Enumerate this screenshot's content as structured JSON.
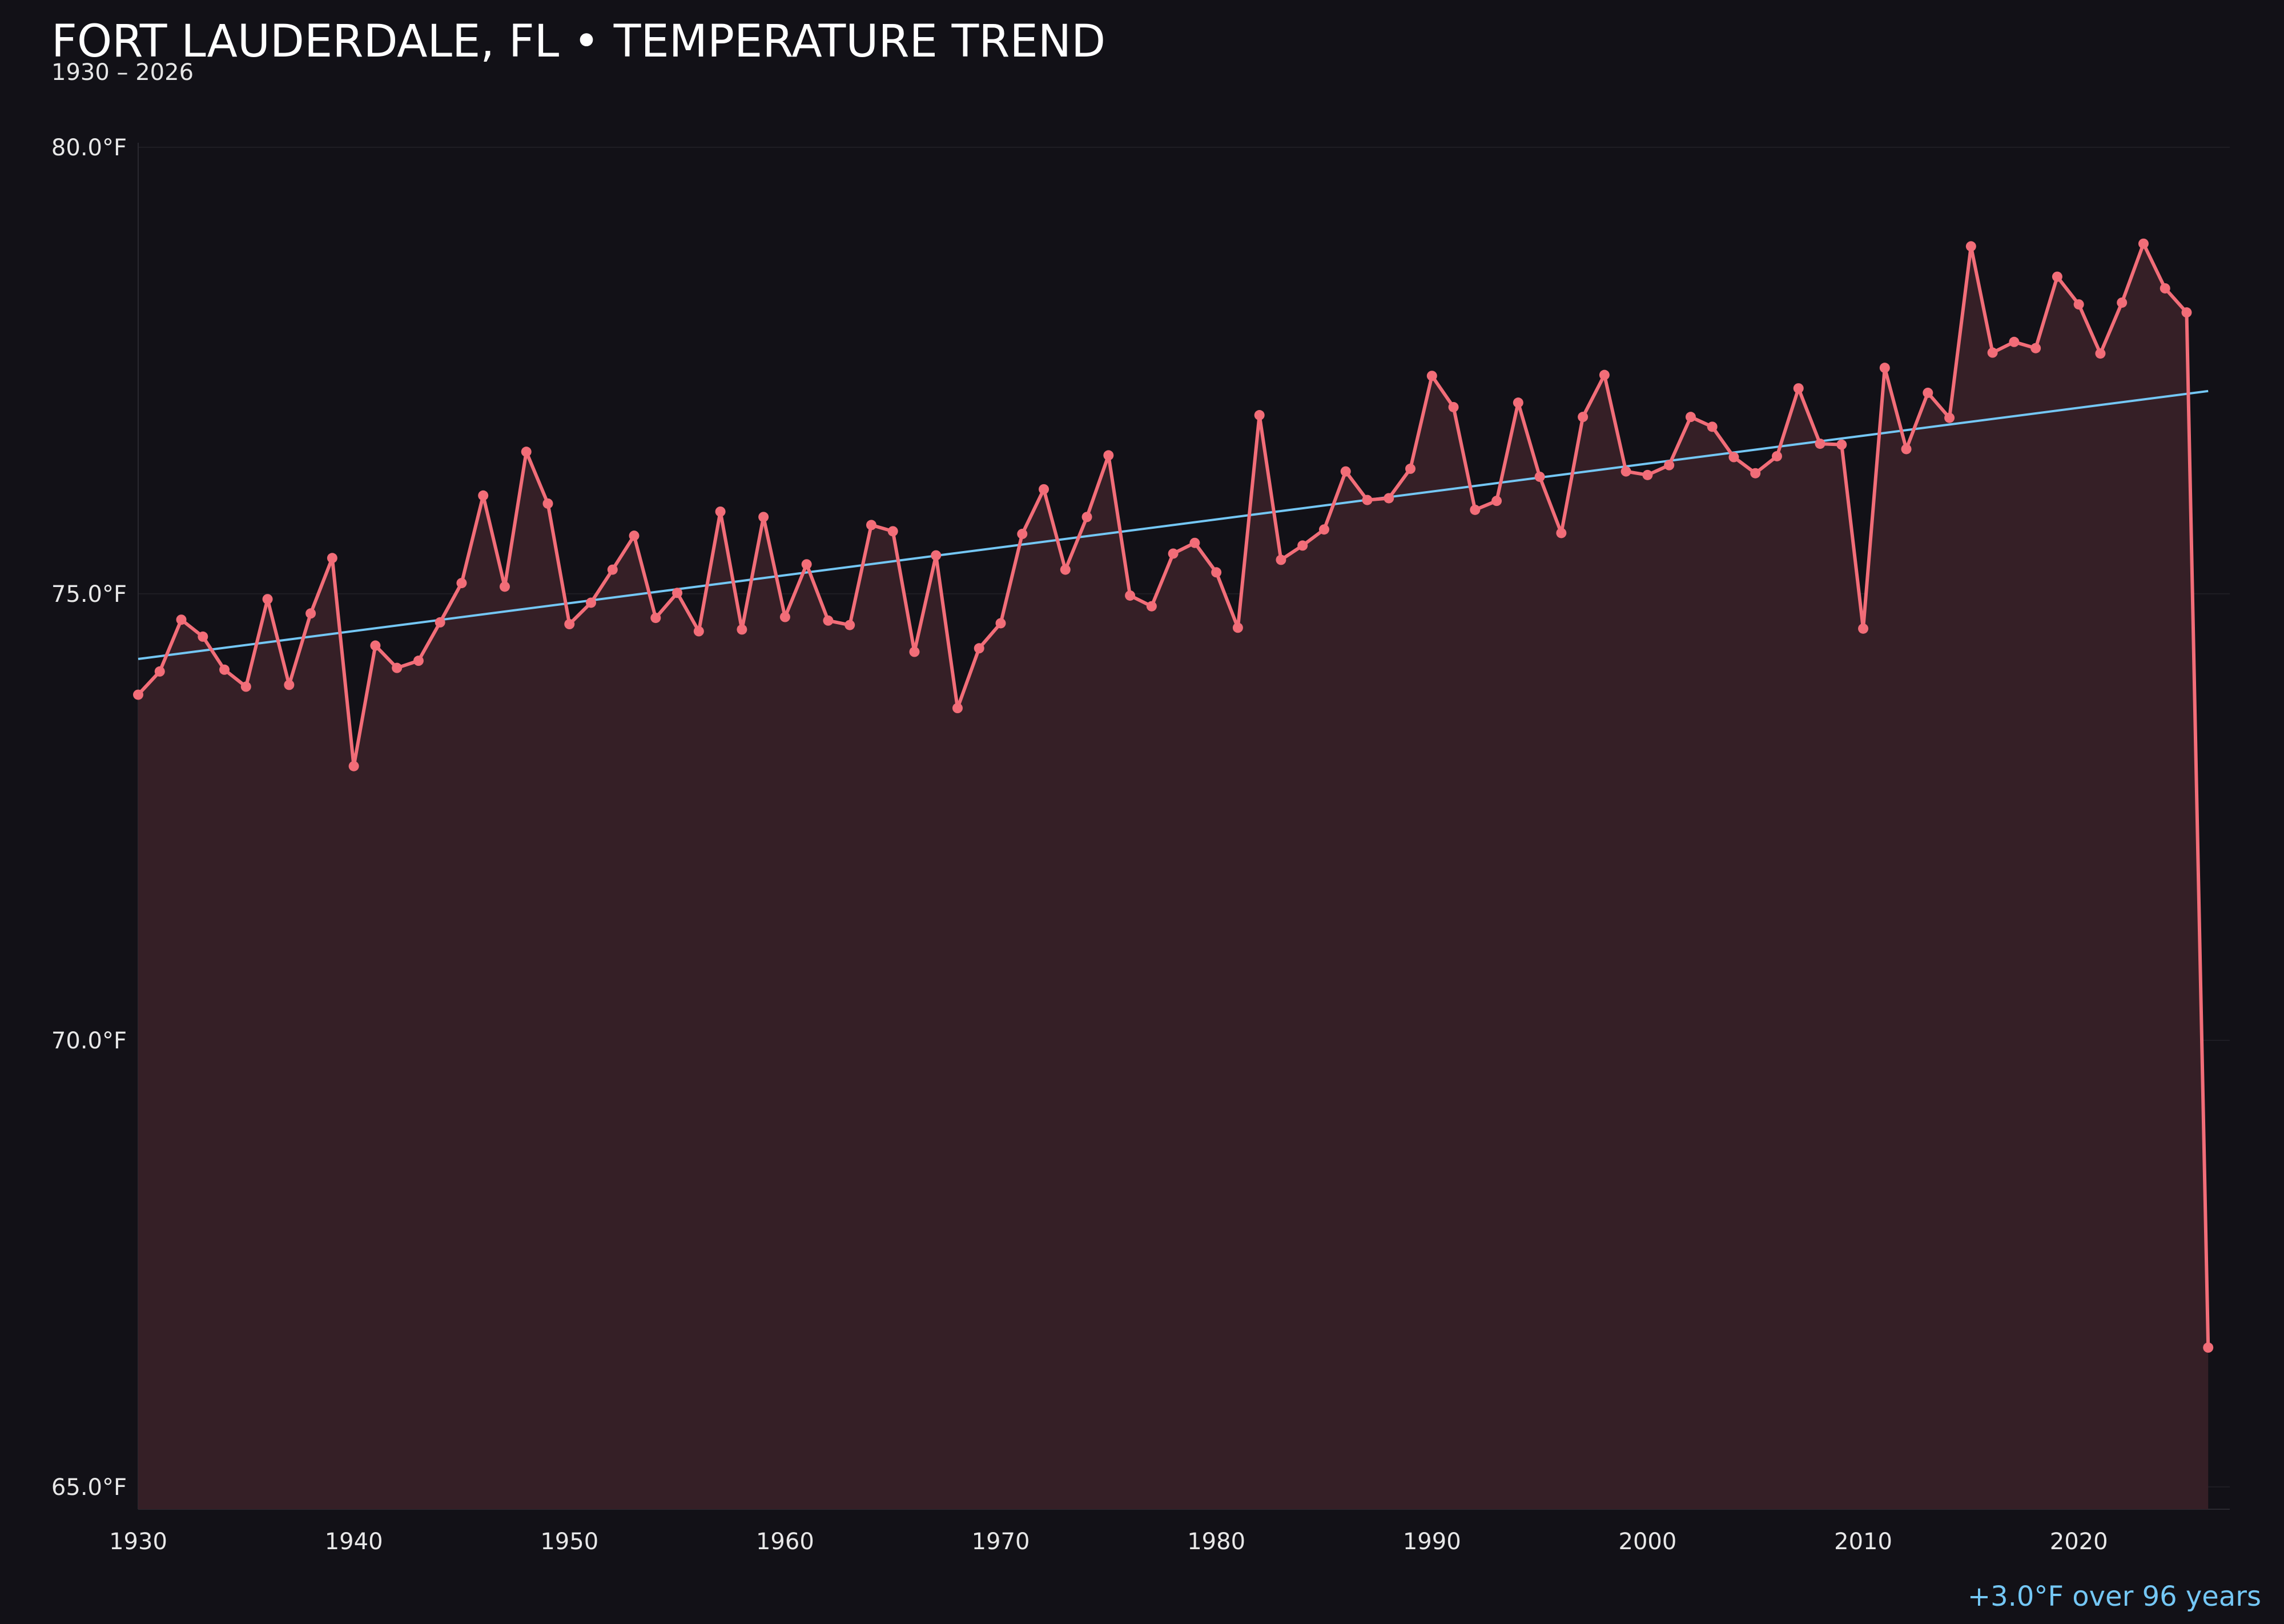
{
  "header": {
    "title": "FORT LAUDERDALE, FL • TEMPERATURE TREND",
    "subtitle": "1930 – 2026"
  },
  "annotation": {
    "text": "+3.0°F over 96 years",
    "color": "#74c7f5"
  },
  "colors": {
    "background": "#121117",
    "series": "#f26d78",
    "fill": "#351f26",
    "trend": "#74c7f5",
    "grid": "#1f1e25",
    "axis": "#2a2930"
  },
  "chart_data": {
    "type": "line",
    "title": "FORT LAUDERDALE, FL • TEMPERATURE TREND",
    "xlabel": "",
    "ylabel": "",
    "xlim": [
      1930,
      2027
    ],
    "ylim": [
      64.75,
      80.05
    ],
    "grid": true,
    "x_ticks": [
      1930,
      1940,
      1950,
      1960,
      1970,
      1980,
      1990,
      2000,
      2010,
      2020
    ],
    "y_ticks": [
      {
        "value": 65,
        "label": "65.0°F"
      },
      {
        "value": 70,
        "label": "70.0°F"
      },
      {
        "value": 75,
        "label": "75.0°F"
      },
      {
        "value": 80,
        "label": "80.0°F"
      }
    ],
    "series": [
      {
        "name": "",
        "type": "line",
        "filled": true,
        "x": [
          1930,
          1931,
          1932,
          1933,
          1934,
          1935,
          1936,
          1937,
          1938,
          1939,
          1940,
          1941,
          1942,
          1943,
          1944,
          1945,
          1946,
          1947,
          1948,
          1949,
          1950,
          1951,
          1952,
          1953,
          1954,
          1955,
          1956,
          1957,
          1958,
          1959,
          1960,
          1961,
          1962,
          1963,
          1964,
          1965,
          1966,
          1967,
          1968,
          1969,
          1970,
          1971,
          1972,
          1973,
          1974,
          1975,
          1976,
          1977,
          1978,
          1979,
          1980,
          1981,
          1982,
          1983,
          1984,
          1985,
          1986,
          1987,
          1988,
          1989,
          1990,
          1991,
          1992,
          1993,
          1994,
          1995,
          1996,
          1997,
          1998,
          1999,
          2000,
          2001,
          2002,
          2003,
          2004,
          2005,
          2006,
          2007,
          2008,
          2009,
          2010,
          2011,
          2012,
          2013,
          2014,
          2015,
          2016,
          2017,
          2018,
          2019,
          2020,
          2021,
          2022,
          2023,
          2024,
          2025,
          2026
        ],
        "y": [
          73.87,
          74.13,
          74.71,
          74.52,
          74.15,
          73.96,
          74.94,
          73.98,
          74.78,
          75.4,
          73.07,
          74.42,
          74.17,
          74.25,
          74.68,
          75.12,
          76.1,
          75.08,
          76.59,
          76.01,
          74.66,
          74.9,
          75.27,
          75.65,
          74.73,
          75.01,
          74.58,
          75.92,
          74.6,
          75.86,
          74.74,
          75.33,
          74.7,
          74.65,
          75.77,
          75.7,
          74.35,
          75.43,
          73.72,
          74.39,
          74.67,
          75.67,
          76.17,
          75.27,
          75.86,
          76.55,
          74.98,
          74.86,
          75.45,
          75.57,
          75.24,
          74.62,
          77.0,
          75.38,
          75.54,
          75.72,
          76.37,
          76.05,
          76.07,
          76.4,
          77.44,
          77.09,
          75.94,
          76.04,
          77.14,
          76.31,
          75.68,
          76.98,
          77.45,
          76.37,
          76.33,
          76.44,
          76.98,
          76.87,
          76.53,
          76.35,
          76.54,
          77.3,
          76.68,
          76.67,
          74.61,
          77.53,
          76.62,
          77.25,
          76.97,
          78.89,
          77.7,
          77.82,
          77.75,
          78.55,
          78.24,
          77.69,
          78.26,
          78.92,
          78.42,
          78.15,
          66.56
        ]
      },
      {
        "name": "",
        "type": "trend",
        "x": [
          1930,
          2026
        ],
        "y": [
          74.27,
          77.27
        ]
      }
    ]
  }
}
